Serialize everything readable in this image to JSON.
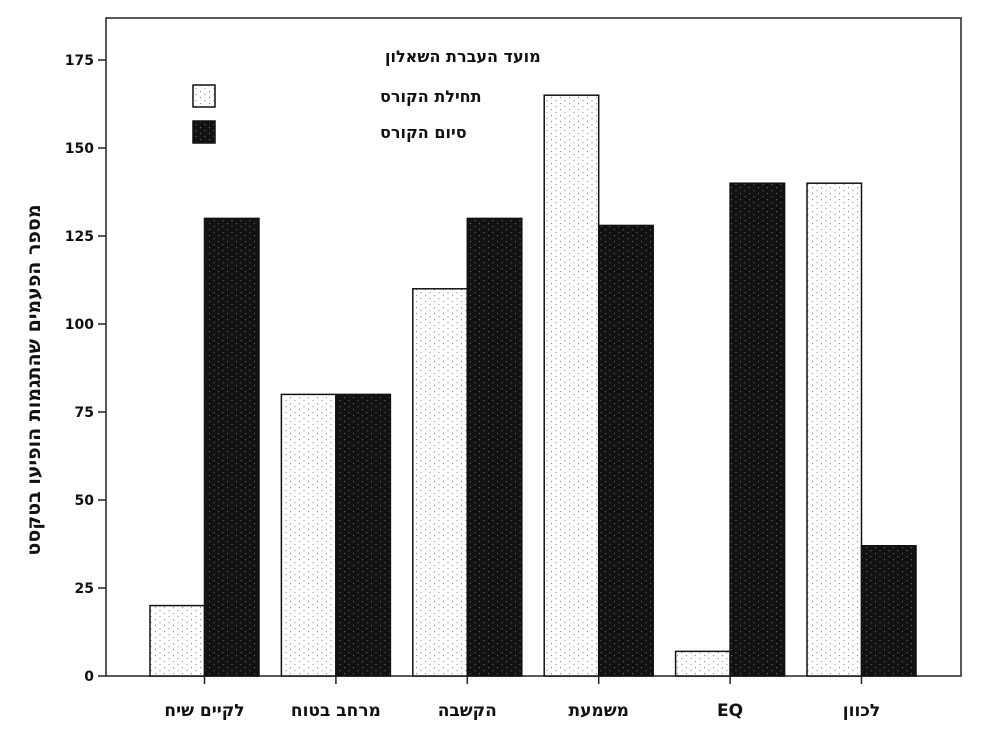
{
  "chart_data": {
    "type": "bar",
    "categories": [
      "לקיים שיח",
      "מרחב בטוח",
      "הקשבה",
      "משמעת",
      "EQ",
      "לכוון"
    ],
    "series": [
      {
        "name": "תחילת הקורס",
        "values": [
          20,
          80,
          110,
          165,
          7,
          140
        ],
        "color": "#ffffff",
        "pattern": "dotted-light"
      },
      {
        "name": "סיום הקורס",
        "values": [
          130,
          80,
          130,
          128,
          140,
          37
        ],
        "color": "#111111",
        "pattern": "dotted-dark"
      }
    ],
    "legend_title": "מועד העברת השאלון",
    "legend_position": "top-left",
    "ylabel": "מספר הפעמים שהתגמות הופיעו בטקסט",
    "xlabel": "",
    "ylim": [
      0,
      175
    ],
    "yticks": [
      0,
      25,
      50,
      75,
      100,
      125,
      150,
      175
    ],
    "grid": false
  }
}
